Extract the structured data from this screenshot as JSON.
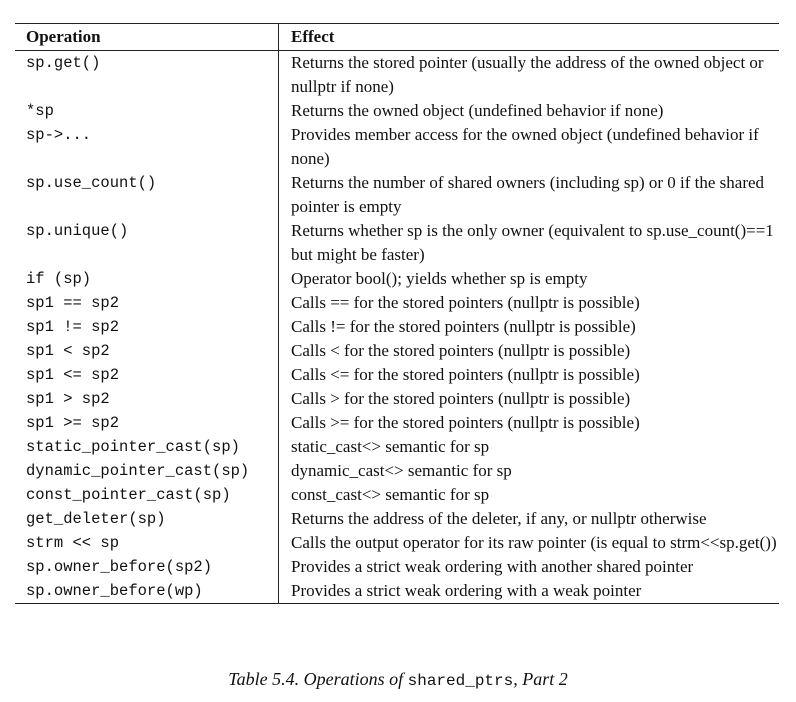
{
  "table": {
    "headers": [
      "Operation",
      "Effect"
    ],
    "rows": [
      {
        "op": "sp.get()",
        "effect": "Returns the stored pointer (usually the address of the owned object or nullptr if none)"
      },
      {
        "op": "*sp",
        "effect": "Returns the owned object (undefined behavior if none)"
      },
      {
        "op": "sp->...",
        "effect": "Provides member access for the owned object (undefined behavior if none)"
      },
      {
        "op": "sp.use_count()",
        "effect": "Returns the number of shared owners (including sp) or 0 if the shared pointer is empty"
      },
      {
        "op": "sp.unique()",
        "effect": "Returns whether sp is the only owner (equivalent to sp.use_count()==1 but might be faster)"
      },
      {
        "op": "if (sp)",
        "effect": "Operator bool(); yields whether sp is empty"
      },
      {
        "op": "sp1 == sp2",
        "effect": "Calls == for the stored pointers (nullptr is possible)"
      },
      {
        "op": "sp1 != sp2",
        "effect": "Calls != for the stored pointers (nullptr is possible)"
      },
      {
        "op": "sp1 < sp2",
        "effect": "Calls < for the stored pointers (nullptr is possible)"
      },
      {
        "op": "sp1 <= sp2",
        "effect": "Calls <= for the stored pointers (nullptr is possible)"
      },
      {
        "op": "sp1 > sp2",
        "effect": "Calls > for the stored pointers (nullptr is possible)"
      },
      {
        "op": "sp1 >= sp2",
        "effect": "Calls >= for the stored pointers (nullptr is possible)"
      },
      {
        "op": "static_pointer_cast(sp)",
        "effect": "static_cast<> semantic for sp"
      },
      {
        "op": "dynamic_pointer_cast(sp)",
        "effect": "dynamic_cast<> semantic for sp"
      },
      {
        "op": "const_pointer_cast(sp)",
        "effect": "const_cast<> semantic for sp"
      },
      {
        "op": "get_deleter(sp)",
        "effect": "Returns the address of the deleter, if any, or nullptr otherwise"
      },
      {
        "op": "strm << sp",
        "effect": "Calls the output operator for its raw pointer (is equal to strm<<sp.get())"
      },
      {
        "op": "sp.owner_before(sp2)",
        "effect": "Provides a strict weak ordering with another shared pointer"
      },
      {
        "op": "sp.owner_before(wp)",
        "effect": "Provides a strict weak ordering with a weak pointer"
      }
    ]
  },
  "caption": {
    "prefix": "Table 5.4. Operations of ",
    "code": "shared_ptrs",
    "suffix": ", Part 2"
  }
}
